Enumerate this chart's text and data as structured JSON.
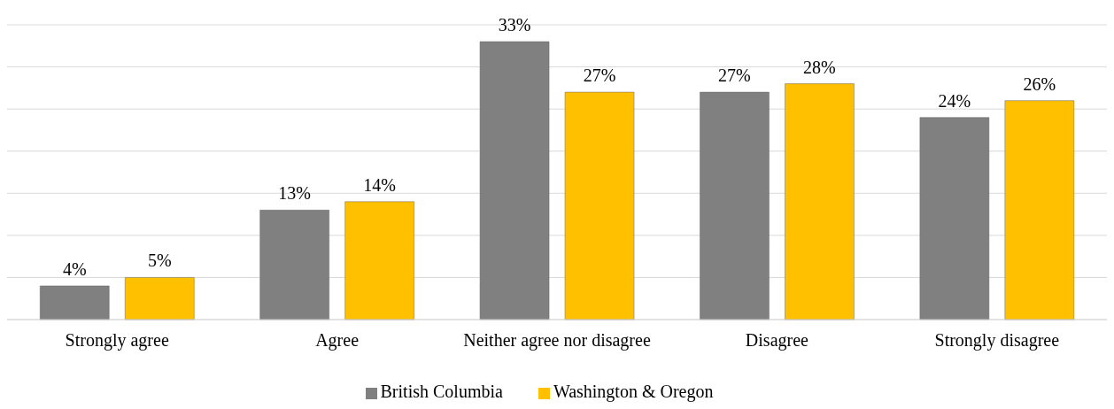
{
  "chart_data": {
    "type": "bar",
    "categories": [
      "Strongly agree",
      "Agree",
      "Neither agree nor disagree",
      "Disagree",
      "Strongly disagree"
    ],
    "series": [
      {
        "name": "British Columbia",
        "color": "#808080",
        "values": [
          4,
          13,
          33,
          27,
          24
        ],
        "value_labels": [
          "4%",
          "13%",
          "33%",
          "27%",
          "24%"
        ]
      },
      {
        "name": "Washington & Oregon",
        "color": "#ffc000",
        "values": [
          5,
          14,
          27,
          28,
          26
        ],
        "value_labels": [
          "5%",
          "14%",
          "27%",
          "28%",
          "26%"
        ]
      }
    ],
    "tick_labels": "x",
    "grid": "y",
    "legend": "bottom"
  }
}
